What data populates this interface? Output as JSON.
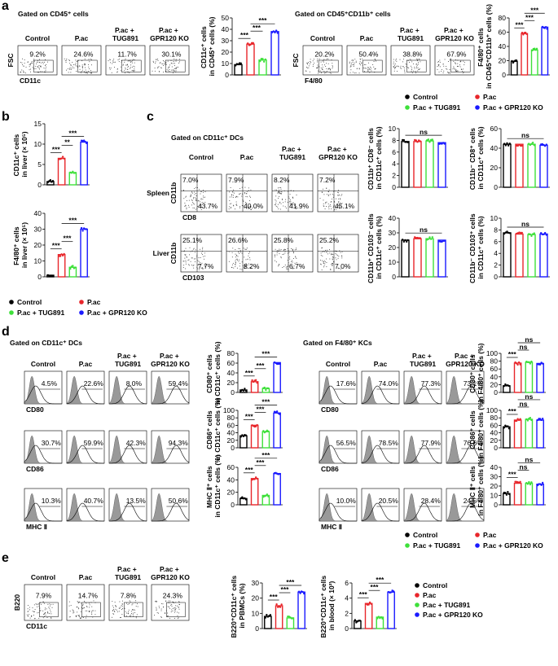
{
  "panel_labels": [
    "a",
    "b",
    "c",
    "d",
    "e"
  ],
  "legend": [
    {
      "name": "Control",
      "color": "#000000"
    },
    {
      "name": "P.ac",
      "color": "#e8262b"
    },
    {
      "name": "P.ac + TUG891",
      "color": "#3ee03a"
    },
    {
      "name": "P.ac + GPR120 KO",
      "color": "#1a1aff"
    }
  ],
  "flow": [
    {
      "kind": "dot",
      "gate": "Gated on CD45⁺ cells",
      "columns": [
        "Control",
        "P.ac",
        "P.ac + TUG891",
        "P.ac + GPR120 KO"
      ],
      "rows": [
        {
          "y_label": "FSC",
          "x_label": "CD11c",
          "percents": [
            "9.2%",
            "24.6%",
            "11.7%",
            "30.1%"
          ]
        }
      ]
    },
    {
      "kind": "dot",
      "gate": "Gated on CD45⁺CD11b⁺ cells",
      "columns": [
        "Control",
        "P.ac",
        "P.ac + TUG891",
        "P.ac + GPR120 KO"
      ],
      "rows": [
        {
          "y_label": "FSC",
          "x_label": "F4/80",
          "percents": [
            "20.2%",
            "50.4%",
            "38.8%",
            "67.9%"
          ]
        }
      ]
    },
    {
      "kind": "quadrant",
      "gate": "Gated on CD11c⁺ DCs",
      "columns": [
        "Control",
        "P.ac",
        "P.ac + TUG891",
        "P.ac + GPR120 KO"
      ],
      "rows": [
        {
          "label": "Spleen",
          "y_label": "CD11b",
          "x_label": "CD8",
          "percents": [
            [
              "7.0%",
              "43.7%"
            ],
            [
              "7.9%",
              "40.0%"
            ],
            [
              "8.2%",
              "41.9%"
            ],
            [
              "7.2%",
              "45.1%"
            ]
          ]
        },
        {
          "label": "Liver",
          "y_label": "CD11b",
          "x_label": "CD103",
          "percents": [
            [
              "25.1%",
              "7.7%"
            ],
            [
              "26.6%",
              "8.2%"
            ],
            [
              "25.8%",
              "6.7%"
            ],
            [
              "25.2%",
              "7.0%"
            ]
          ]
        }
      ]
    },
    {
      "kind": "histogram",
      "gate": "Gated on CD11c⁺ DCs",
      "columns": [
        "Control",
        "P.ac",
        "P.ac + TUG891",
        "P.ac + GPR120 KO"
      ],
      "rows": [
        {
          "x_label": "CD80",
          "percents": [
            "4.5%",
            "22.6%",
            "8.0%",
            "59.4%"
          ]
        },
        {
          "x_label": "CD86",
          "percents": [
            "30.7%",
            "59.9%",
            "42.3%",
            "94.3%"
          ]
        },
        {
          "x_label": "MHC Ⅱ",
          "percents": [
            "10.3%",
            "40.7%",
            "13.5%",
            "50.6%"
          ]
        }
      ]
    },
    {
      "kind": "histogram",
      "gate": "Gated on F4/80⁺ KCs",
      "columns": [
        "Control",
        "P.ac",
        "P.ac + TUG891",
        "P.ac + GPR120 KO"
      ],
      "rows": [
        {
          "x_label": "CD80",
          "percents": [
            "17.6%",
            "74.0%",
            "77.3%",
            "73.1%"
          ]
        },
        {
          "x_label": "CD86",
          "percents": [
            "56.5%",
            "78.5%",
            "77.9%",
            "76.6%"
          ]
        },
        {
          "x_label": "MHC Ⅱ",
          "percents": [
            "10.0%",
            "20.5%",
            "28.4%",
            "24.5%"
          ]
        }
      ]
    },
    {
      "kind": "dot",
      "columns": [
        "Control",
        "P.ac",
        "P.ac + TUG891",
        "P.ac + GPR120 KO"
      ],
      "rows": [
        {
          "y_label": "B220",
          "x_label": "CD11c",
          "percents": [
            "7.9%",
            "14.7%",
            "7.8%",
            "24.3%"
          ]
        }
      ]
    }
  ],
  "chart_data": [
    {
      "type": "bar",
      "y_label": "CD11c⁺ cells in CD45⁺ cells (%)",
      "values": [
        9,
        27,
        13,
        38
      ],
      "ylim": [
        0,
        50
      ],
      "yticks": [
        0,
        10,
        20,
        30,
        40,
        50
      ],
      "annotations": [
        {
          "text": "***",
          "groups": [
            0,
            1
          ]
        },
        {
          "text": "***",
          "groups": [
            1,
            2
          ]
        },
        {
          "text": "***",
          "groups": [
            1,
            3
          ]
        }
      ]
    },
    {
      "type": "bar",
      "y_label": "F4/80⁺ cells in CD45⁺CD11b⁺ cells (%)",
      "values": [
        19,
        58,
        35,
        67
      ],
      "ylim": [
        0,
        80
      ],
      "yticks": [
        0,
        20,
        40,
        60,
        80
      ],
      "annotations": [
        {
          "text": "***",
          "groups": [
            0,
            1
          ]
        },
        {
          "text": "***",
          "groups": [
            1,
            2
          ]
        },
        {
          "text": "***",
          "groups": [
            1,
            3
          ]
        }
      ]
    },
    {
      "type": "bar",
      "y_label": "CD11c⁺ cells in liver (× 10⁵)",
      "values": [
        0.8,
        6.5,
        3,
        10.5
      ],
      "ylim": [
        0,
        15
      ],
      "yticks": [
        0,
        5,
        10,
        15
      ],
      "annotations": [
        {
          "text": "***",
          "groups": [
            0,
            1
          ]
        },
        {
          "text": "**",
          "groups": [
            1,
            2
          ]
        },
        {
          "text": "***",
          "groups": [
            1,
            3
          ]
        }
      ]
    },
    {
      "type": "bar",
      "y_label": "F4/80⁺ cells in liver (× 10⁵)",
      "values": [
        1,
        14,
        6,
        30
      ],
      "ylim": [
        0,
        40
      ],
      "yticks": [
        0,
        10,
        20,
        30,
        40
      ],
      "annotations": [
        {
          "text": "***",
          "groups": [
            0,
            1
          ]
        },
        {
          "text": "***",
          "groups": [
            1,
            2
          ]
        },
        {
          "text": "***",
          "groups": [
            1,
            3
          ]
        }
      ]
    },
    {
      "type": "bar",
      "y_label": "CD11b⁺ CD8⁻ cells in CD11c⁺ cells (%)",
      "values": [
        7.8,
        7.8,
        7.9,
        7.6
      ],
      "ylim": [
        0,
        10
      ],
      "yticks": [
        0,
        2,
        4,
        6,
        8,
        10
      ],
      "annotations": [
        {
          "text": "ns",
          "groups": [
            0,
            3
          ]
        }
      ]
    },
    {
      "type": "bar",
      "y_label": "CD11b⁻ CD8⁺ cells in CD11c⁺ cells (%)",
      "values": [
        44,
        44,
        44,
        43
      ],
      "ylim": [
        0,
        60
      ],
      "yticks": [
        0,
        20,
        40,
        60
      ],
      "annotations": [
        {
          "text": "ns",
          "groups": [
            0,
            3
          ]
        }
      ]
    },
    {
      "type": "bar",
      "y_label": "CD11b⁺ CD103⁻ cells in CD11c⁺ cells (%)",
      "values": [
        25,
        26,
        26,
        25
      ],
      "ylim": [
        0,
        40
      ],
      "yticks": [
        0,
        10,
        20,
        30,
        40
      ],
      "annotations": [
        {
          "text": "ns",
          "groups": [
            0,
            3
          ]
        }
      ]
    },
    {
      "type": "bar",
      "y_label": "CD11b⁻ CD103⁺ cells in CD11c⁺ cells (%)",
      "values": [
        7.5,
        7.3,
        7.2,
        7.3
      ],
      "ylim": [
        0,
        10
      ],
      "yticks": [
        0,
        2,
        4,
        6,
        8,
        10
      ],
      "annotations": [
        {
          "text": "ns",
          "groups": [
            0,
            3
          ]
        }
      ]
    },
    {
      "type": "bar",
      "y_label": "CD80⁺ cells in CD11c⁺ cells (%)",
      "values": [
        5,
        22,
        8,
        61
      ],
      "ylim": [
        0,
        80
      ],
      "yticks": [
        0,
        20,
        40,
        60,
        80
      ],
      "annotations": [
        {
          "text": "***",
          "groups": [
            0,
            1
          ]
        },
        {
          "text": "***",
          "groups": [
            1,
            2
          ]
        },
        {
          "text": "***",
          "groups": [
            1,
            3
          ]
        }
      ]
    },
    {
      "type": "bar",
      "y_label": "CD86⁺ cells in CD11c⁺ cells (%)",
      "values": [
        32,
        60,
        43,
        93
      ],
      "ylim": [
        0,
        100
      ],
      "yticks": [
        0,
        20,
        40,
        60,
        80,
        100
      ],
      "annotations": [
        {
          "text": "***",
          "groups": [
            0,
            1
          ]
        },
        {
          "text": "***",
          "groups": [
            1,
            2
          ]
        },
        {
          "text": "***",
          "groups": [
            1,
            3
          ]
        }
      ]
    },
    {
      "type": "bar",
      "y_label": "MHC Ⅱ⁺ cells in CD11c⁺ cells (%)",
      "values": [
        10,
        42,
        15,
        50
      ],
      "ylim": [
        0,
        60
      ],
      "yticks": [
        0,
        20,
        40,
        60
      ],
      "annotations": [
        {
          "text": "***",
          "groups": [
            0,
            1
          ]
        },
        {
          "text": "***",
          "groups": [
            1,
            2
          ]
        },
        {
          "text": "***",
          "groups": [
            1,
            3
          ]
        }
      ]
    },
    {
      "type": "bar",
      "y_label": "CD80⁺ cells in F4/80⁺ cells (%)",
      "values": [
        17,
        75,
        77,
        74
      ],
      "ylim": [
        0,
        100
      ],
      "yticks": [
        0,
        20,
        40,
        60,
        80,
        100
      ],
      "annotations": [
        {
          "text": "***",
          "groups": [
            0,
            1
          ]
        },
        {
          "text": "ns",
          "groups": [
            1,
            2
          ]
        },
        {
          "text": "ns",
          "groups": [
            1,
            3
          ]
        }
      ]
    },
    {
      "type": "bar",
      "y_label": "CD86⁺ cells in F4/80⁺ cells (%)",
      "values": [
        56,
        74,
        76,
        74
      ],
      "ylim": [
        0,
        100
      ],
      "yticks": [
        0,
        20,
        40,
        60,
        80,
        100
      ],
      "annotations": [
        {
          "text": "***",
          "groups": [
            0,
            1
          ]
        },
        {
          "text": "ns",
          "groups": [
            1,
            2
          ]
        },
        {
          "text": "ns",
          "groups": [
            1,
            3
          ]
        }
      ]
    },
    {
      "type": "bar",
      "y_label": "MHC Ⅱ⁺ cells in F4/80⁺ cells (%)",
      "values": [
        12,
        23,
        23,
        22
      ],
      "ylim": [
        0,
        40
      ],
      "yticks": [
        0,
        10,
        20,
        30,
        40
      ],
      "annotations": [
        {
          "text": "***",
          "groups": [
            0,
            1
          ]
        },
        {
          "text": "ns",
          "groups": [
            1,
            2
          ]
        },
        {
          "text": "ns",
          "groups": [
            1,
            3
          ]
        }
      ]
    },
    {
      "type": "bar",
      "y_label": "B220⁺CD11c⁺ cells in PBMCs (%)",
      "values": [
        8,
        15,
        7,
        24
      ],
      "ylim": [
        0,
        30
      ],
      "yticks": [
        0,
        10,
        20,
        30
      ],
      "annotations": [
        {
          "text": "***",
          "groups": [
            0,
            1
          ]
        },
        {
          "text": "***",
          "groups": [
            1,
            2
          ]
        },
        {
          "text": "***",
          "groups": [
            1,
            3
          ]
        }
      ]
    },
    {
      "type": "bar",
      "y_label": "B220⁺CD11c⁺ cells in blood (× 10³)",
      "values": [
        1.0,
        3.3,
        1.5,
        4.8
      ],
      "ylim": [
        0,
        6
      ],
      "yticks": [
        0,
        2,
        4,
        6
      ],
      "annotations": [
        {
          "text": "***",
          "groups": [
            0,
            1
          ]
        },
        {
          "text": "***",
          "groups": [
            1,
            2
          ]
        },
        {
          "text": "***",
          "groups": [
            1,
            3
          ]
        }
      ]
    }
  ]
}
